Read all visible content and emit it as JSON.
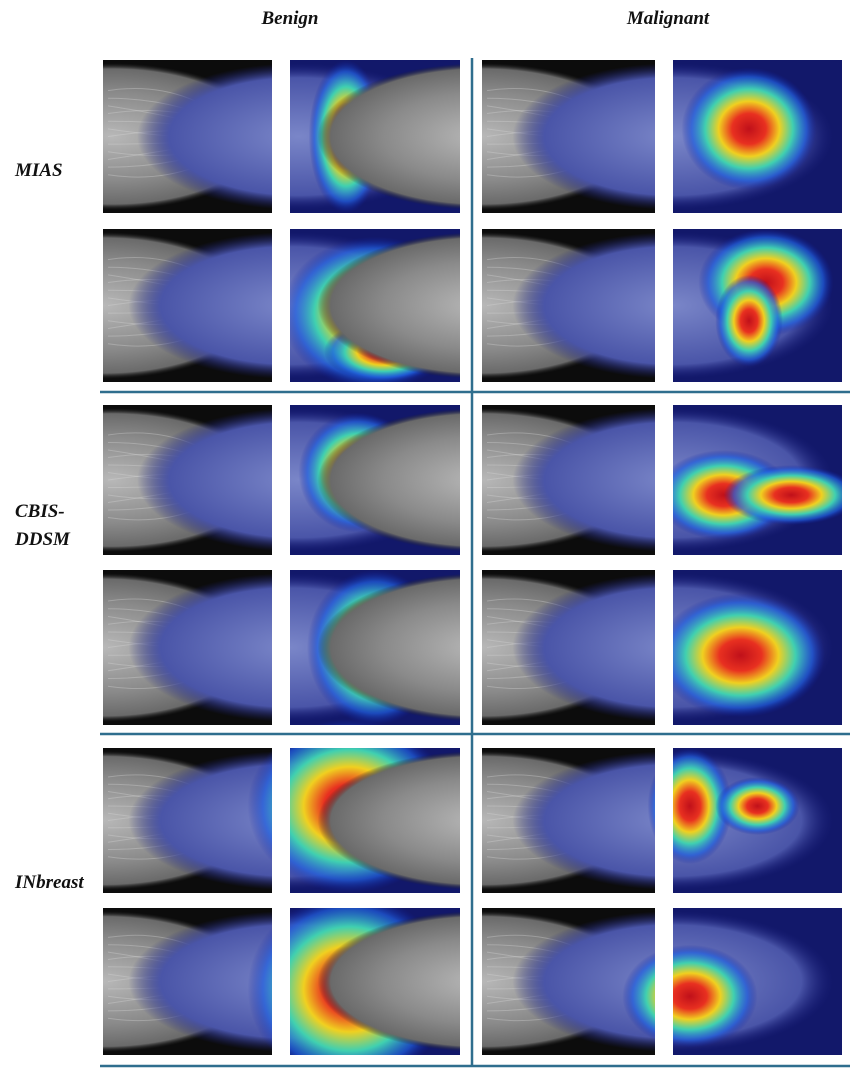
{
  "figure": {
    "columns": [
      "Benign",
      "Malignant"
    ],
    "rows": [
      {
        "lines": [
          "MIAS"
        ]
      },
      {
        "lines": [
          "CBIS-",
          "DDSM"
        ]
      },
      {
        "lines": [
          "INbreast"
        ]
      }
    ]
  }
}
